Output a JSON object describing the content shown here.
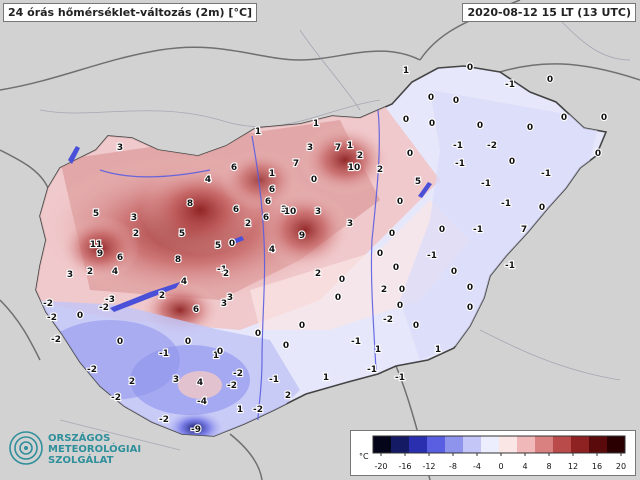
{
  "title": "24 órás hőmérséklet-változás (2m) [°C]",
  "timestamp": "2020-08-12 15 LT (13 UTC)",
  "logo": {
    "line1": "ORSZÁGOS",
    "line2": "METEOROLÓGIAI",
    "line3": "SZOLGÁLAT"
  },
  "legend": {
    "unit": "°C",
    "ticks": [
      "-20",
      "-16",
      "-12",
      "-8",
      "-4",
      "0",
      "4",
      "8",
      "12",
      "16",
      "20"
    ],
    "colors": [
      "#05051a",
      "#141a63",
      "#2a2fb0",
      "#5a5ee0",
      "#8e93ec",
      "#c3c6f6",
      "#eceefd",
      "#fbe6e6",
      "#f0b8b8",
      "#d98080",
      "#b94b4b",
      "#8e2222",
      "#5a0a0a",
      "#2a0000"
    ]
  },
  "station_values": [
    {
      "v": "1"
    },
    {
      "v": "0"
    },
    {
      "v": "-1"
    },
    {
      "v": "0"
    },
    {
      "v": "0"
    },
    {
      "v": "0"
    },
    {
      "v": "0"
    },
    {
      "v": "0"
    },
    {
      "v": "1"
    },
    {
      "v": "0"
    },
    {
      "v": "1"
    },
    {
      "v": "0"
    },
    {
      "v": "0"
    },
    {
      "v": "0"
    },
    {
      "v": "1"
    },
    {
      "v": "7"
    },
    {
      "v": "2"
    },
    {
      "v": "-1"
    },
    {
      "v": "-2"
    },
    {
      "v": "0"
    },
    {
      "v": "3"
    },
    {
      "v": "10"
    },
    {
      "v": "2"
    },
    {
      "v": "0"
    },
    {
      "v": "3"
    },
    {
      "v": "7"
    },
    {
      "v": "1"
    },
    {
      "v": "-1"
    },
    {
      "v": "0"
    },
    {
      "v": "-1"
    },
    {
      "v": "5"
    },
    {
      "v": "4"
    },
    {
      "v": "6"
    },
    {
      "v": "6"
    },
    {
      "v": "0"
    },
    {
      "v": "-1"
    },
    {
      "v": "0"
    },
    {
      "v": "8"
    },
    {
      "v": "6"
    },
    {
      "v": "3"
    },
    {
      "v": "10"
    },
    {
      "v": "3"
    },
    {
      "v": "-1"
    },
    {
      "v": "5"
    },
    {
      "v": "3"
    },
    {
      "v": "6"
    },
    {
      "v": "6"
    },
    {
      "v": "0"
    },
    {
      "v": "0"
    },
    {
      "v": "-1"
    },
    {
      "v": "11"
    },
    {
      "v": "5"
    },
    {
      "v": "2"
    },
    {
      "v": "9"
    },
    {
      "v": "3"
    },
    {
      "v": "0"
    },
    {
      "v": "0"
    },
    {
      "v": "7"
    },
    {
      "v": "9"
    },
    {
      "v": "6"
    },
    {
      "v": "5"
    },
    {
      "v": "0"
    },
    {
      "v": "-1"
    },
    {
      "v": "2"
    },
    {
      "v": "4"
    },
    {
      "v": "8"
    },
    {
      "v": "4"
    },
    {
      "v": "2"
    },
    {
      "v": "0"
    },
    {
      "v": "0"
    },
    {
      "v": "-1"
    },
    {
      "v": "-1"
    },
    {
      "v": "3"
    },
    {
      "v": "2"
    },
    {
      "v": "2"
    },
    {
      "v": "-3"
    },
    {
      "v": "4"
    },
    {
      "v": "3"
    },
    {
      "v": "0"
    },
    {
      "v": "2"
    },
    {
      "v": "0"
    },
    {
      "v": "0"
    },
    {
      "v": "-2"
    },
    {
      "v": "-2"
    },
    {
      "v": "2"
    },
    {
      "v": "6"
    },
    {
      "v": "3"
    },
    {
      "v": "0"
    },
    {
      "v": "0"
    },
    {
      "v": "0"
    },
    {
      "v": "0"
    },
    {
      "v": "-2"
    },
    {
      "v": "0"
    },
    {
      "v": "0"
    },
    {
      "v": "-2"
    },
    {
      "v": "-2"
    },
    {
      "v": "0"
    },
    {
      "v": "0"
    },
    {
      "v": "-1"
    },
    {
      "v": "1"
    },
    {
      "v": "0"
    },
    {
      "v": "-2"
    },
    {
      "v": "-1"
    },
    {
      "v": "0"
    },
    {
      "v": "-2"
    },
    {
      "v": "1"
    },
    {
      "v": "1"
    },
    {
      "v": "-1"
    },
    {
      "v": "-2"
    },
    {
      "v": "2"
    },
    {
      "v": "4"
    },
    {
      "v": "1"
    },
    {
      "v": "-1"
    },
    {
      "v": "-1"
    },
    {
      "v": "-2"
    },
    {
      "v": "0"
    },
    {
      "v": "-4"
    },
    {
      "v": "1"
    },
    {
      "v": "-2"
    },
    {
      "v": "-2"
    },
    {
      "v": "3"
    },
    {
      "v": "2"
    },
    {
      "v": "-9"
    }
  ]
}
